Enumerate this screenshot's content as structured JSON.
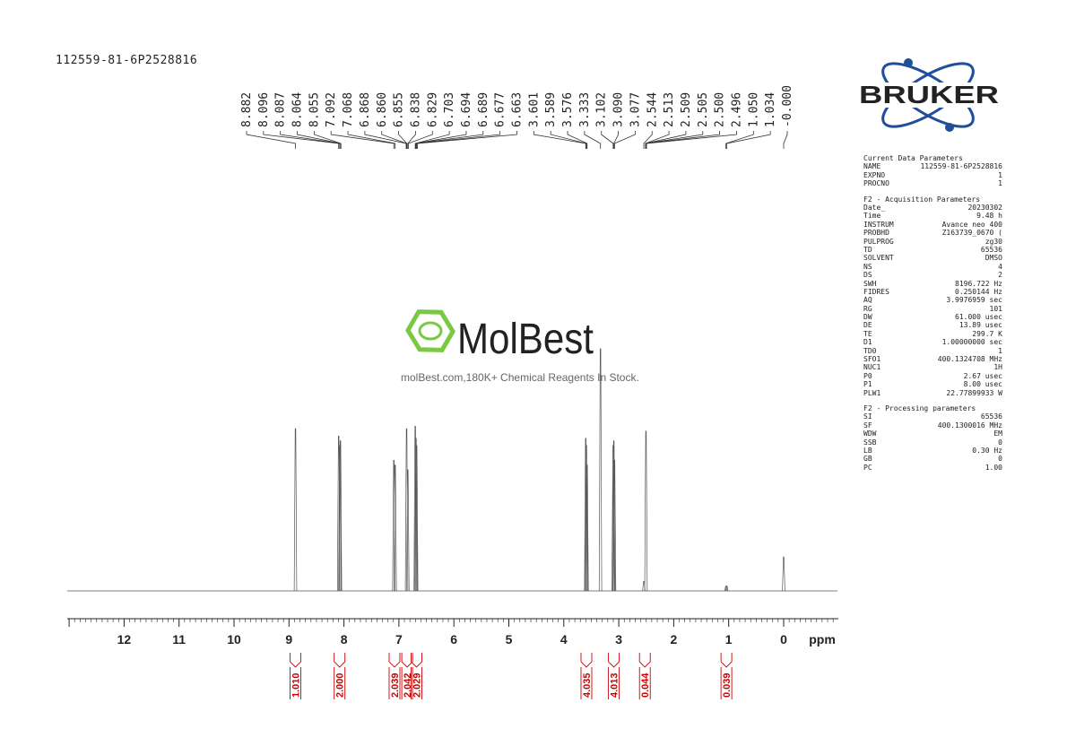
{
  "sample_id": "112559-81-6P2528816",
  "watermark": {
    "name": "MolBest",
    "tagline": "molBest.com,180K+ Chemical Reagents In Stock."
  },
  "brand": {
    "name": "BRUKER"
  },
  "colors": {
    "integral": "#cc0000",
    "trace": "#555555",
    "logo_green": "#7ac943",
    "logo_blue": "#1f4e9c"
  },
  "params": {
    "current": {
      "title": "Current Data Parameters",
      "rows": [
        [
          "NAME",
          "112559-81-6P2528816"
        ],
        [
          "EXPNO",
          "1"
        ],
        [
          "PROCNO",
          "1"
        ]
      ]
    },
    "acquisition": {
      "title": "F2 - Acquisition Parameters",
      "rows": [
        [
          "Date_",
          "20230302"
        ],
        [
          "Time",
          "9.48 h"
        ],
        [
          "INSTRUM",
          "Avance neo 400"
        ],
        [
          "PROBHD",
          "Z163739_0670 ("
        ],
        [
          "PULPROG",
          "zg30"
        ],
        [
          "TD",
          "65536"
        ],
        [
          "SOLVENT",
          "DMSO"
        ],
        [
          "NS",
          "4"
        ],
        [
          "DS",
          "2"
        ],
        [
          "SWH",
          "8196.722 Hz"
        ],
        [
          "FIDRES",
          "0.250144 Hz"
        ],
        [
          "AQ",
          "3.9976959 sec"
        ],
        [
          "RG",
          "101"
        ],
        [
          "DW",
          "61.000 usec"
        ],
        [
          "DE",
          "13.89 usec"
        ],
        [
          "TE",
          "299.7 K"
        ],
        [
          "D1",
          "1.00000000 sec"
        ],
        [
          "TD0",
          "1"
        ],
        [
          "SFO1",
          "400.1324708 MHz"
        ],
        [
          "NUC1",
          "1H"
        ],
        [
          "P0",
          "2.67 usec"
        ],
        [
          "P1",
          "8.00 usec"
        ],
        [
          "PLW1",
          "22.77899933 W"
        ]
      ]
    },
    "processing": {
      "title": "F2 - Processing parameters",
      "rows": [
        [
          "SI",
          "65536"
        ],
        [
          "SF",
          "400.1300016 MHz"
        ],
        [
          "WDW",
          "EM"
        ],
        [
          "SSB",
          "0"
        ],
        [
          "LB",
          "0.30 Hz"
        ],
        [
          "GB",
          "0"
        ],
        [
          "PC",
          "1.00"
        ]
      ]
    }
  },
  "chart_data": {
    "type": "line",
    "title": "",
    "xlabel": "ppm",
    "ylabel": "",
    "xlim": [
      13,
      -1
    ],
    "x_reversed": true,
    "x_ticks": [
      12,
      11,
      10,
      9,
      8,
      7,
      6,
      5,
      4,
      3,
      2,
      1,
      0
    ],
    "grid": false,
    "peak_labels": [
      "8.882",
      "8.096",
      "8.087",
      "8.064",
      "8.055",
      "7.092",
      "7.068",
      "6.868",
      "6.860",
      "6.855",
      "6.838",
      "6.829",
      "6.703",
      "6.694",
      "6.689",
      "6.677",
      "6.663",
      "3.601",
      "3.589",
      "3.576",
      "3.333",
      "3.102",
      "3.090",
      "3.077",
      "2.544",
      "2.513",
      "2.509",
      "2.505",
      "2.500",
      "2.496",
      "1.050",
      "1.034",
      "-0.000"
    ],
    "peaks": [
      {
        "ppm": 8.882,
        "height": 0.67
      },
      {
        "ppm": 8.096,
        "height": 0.64
      },
      {
        "ppm": 8.075,
        "height": 0.6
      },
      {
        "ppm": 8.064,
        "height": 0.62
      },
      {
        "ppm": 7.092,
        "height": 0.54
      },
      {
        "ppm": 7.068,
        "height": 0.52
      },
      {
        "ppm": 6.86,
        "height": 0.67
      },
      {
        "ppm": 6.838,
        "height": 0.5
      },
      {
        "ppm": 6.703,
        "height": 0.68
      },
      {
        "ppm": 6.689,
        "height": 0.63
      },
      {
        "ppm": 6.677,
        "height": 0.6
      },
      {
        "ppm": 3.601,
        "height": 0.63
      },
      {
        "ppm": 3.589,
        "height": 0.6
      },
      {
        "ppm": 3.576,
        "height": 0.52
      },
      {
        "ppm": 3.333,
        "height": 1.0
      },
      {
        "ppm": 3.102,
        "height": 0.6
      },
      {
        "ppm": 3.09,
        "height": 0.62
      },
      {
        "ppm": 3.077,
        "height": 0.54
      },
      {
        "ppm": 2.544,
        "height": 0.04
      },
      {
        "ppm": 2.505,
        "height": 0.66
      },
      {
        "ppm": 1.05,
        "height": 0.02
      },
      {
        "ppm": 1.034,
        "height": 0.02
      },
      {
        "ppm": 0.0,
        "height": 0.14
      }
    ],
    "integrals": [
      {
        "ppm": 8.882,
        "value": "1.010"
      },
      {
        "ppm": 8.08,
        "value": "2.000"
      },
      {
        "ppm": 7.08,
        "value": "2.039"
      },
      {
        "ppm": 6.85,
        "value": "2.042"
      },
      {
        "ppm": 6.68,
        "value": "2.029"
      },
      {
        "ppm": 3.589,
        "value": "4.035"
      },
      {
        "ppm": 3.09,
        "value": "4.013"
      },
      {
        "ppm": 2.525,
        "value": "0.044"
      },
      {
        "ppm": 1.042,
        "value": "0.039"
      }
    ]
  }
}
